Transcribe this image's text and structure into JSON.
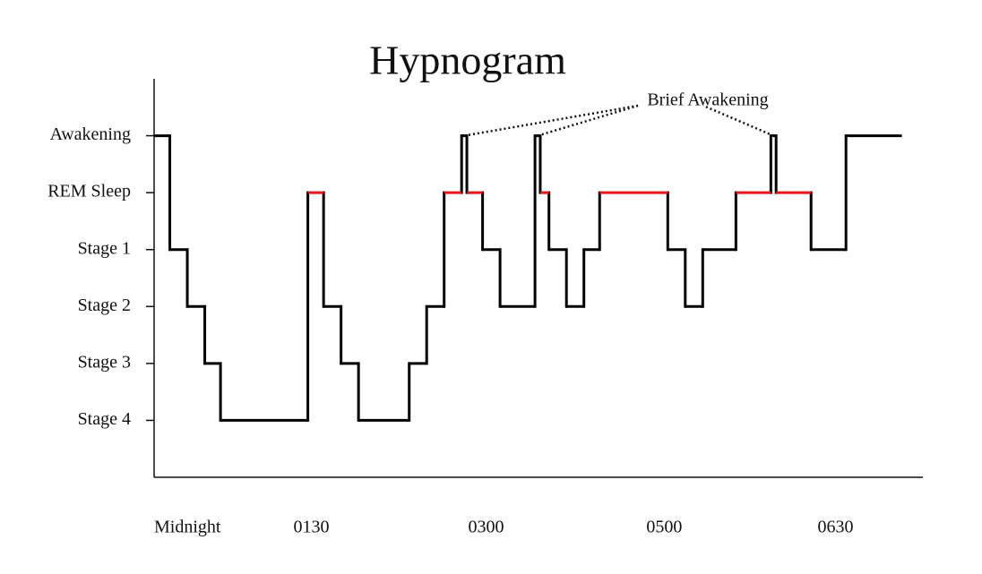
{
  "chart_data": {
    "type": "step",
    "title": "Hypnogram",
    "annotation": "Brief Awakening",
    "x": [
      0,
      9,
      19,
      29,
      38,
      88,
      97,
      107,
      117,
      146,
      156,
      166,
      176,
      179,
      188,
      198,
      218,
      221,
      226,
      236,
      246,
      255,
      294,
      304,
      314,
      333,
      353,
      356,
      376,
      396,
      428
    ],
    "values": [
      6,
      4,
      3,
      2,
      1,
      5,
      3,
      2,
      1,
      2,
      3,
      5,
      6,
      5,
      4,
      3,
      6,
      5,
      4,
      3,
      4,
      5,
      4,
      3,
      4,
      5,
      6,
      5,
      4,
      6,
      6
    ],
    "color": "#000000",
    "highlight_level": 5,
    "highlight_color": "#e8141a",
    "xlim": [
      0,
      440
    ],
    "xticks": [
      {
        "value": 0,
        "label": "Midnight"
      },
      {
        "value": 90,
        "label": "0130"
      },
      {
        "value": 190,
        "label": "0300"
      },
      {
        "value": 292,
        "label": "0500"
      },
      {
        "value": 390,
        "label": "0630"
      }
    ],
    "ylim": [
      0,
      7
    ],
    "yticks": [
      {
        "value": 6,
        "label": "Awakening"
      },
      {
        "value": 5,
        "label": "REM Sleep"
      },
      {
        "value": 4,
        "label": "Stage 1"
      },
      {
        "value": 3,
        "label": "Stage 2"
      },
      {
        "value": 2,
        "label": "Stage 3"
      },
      {
        "value": 1,
        "label": "Stage 4"
      }
    ]
  }
}
